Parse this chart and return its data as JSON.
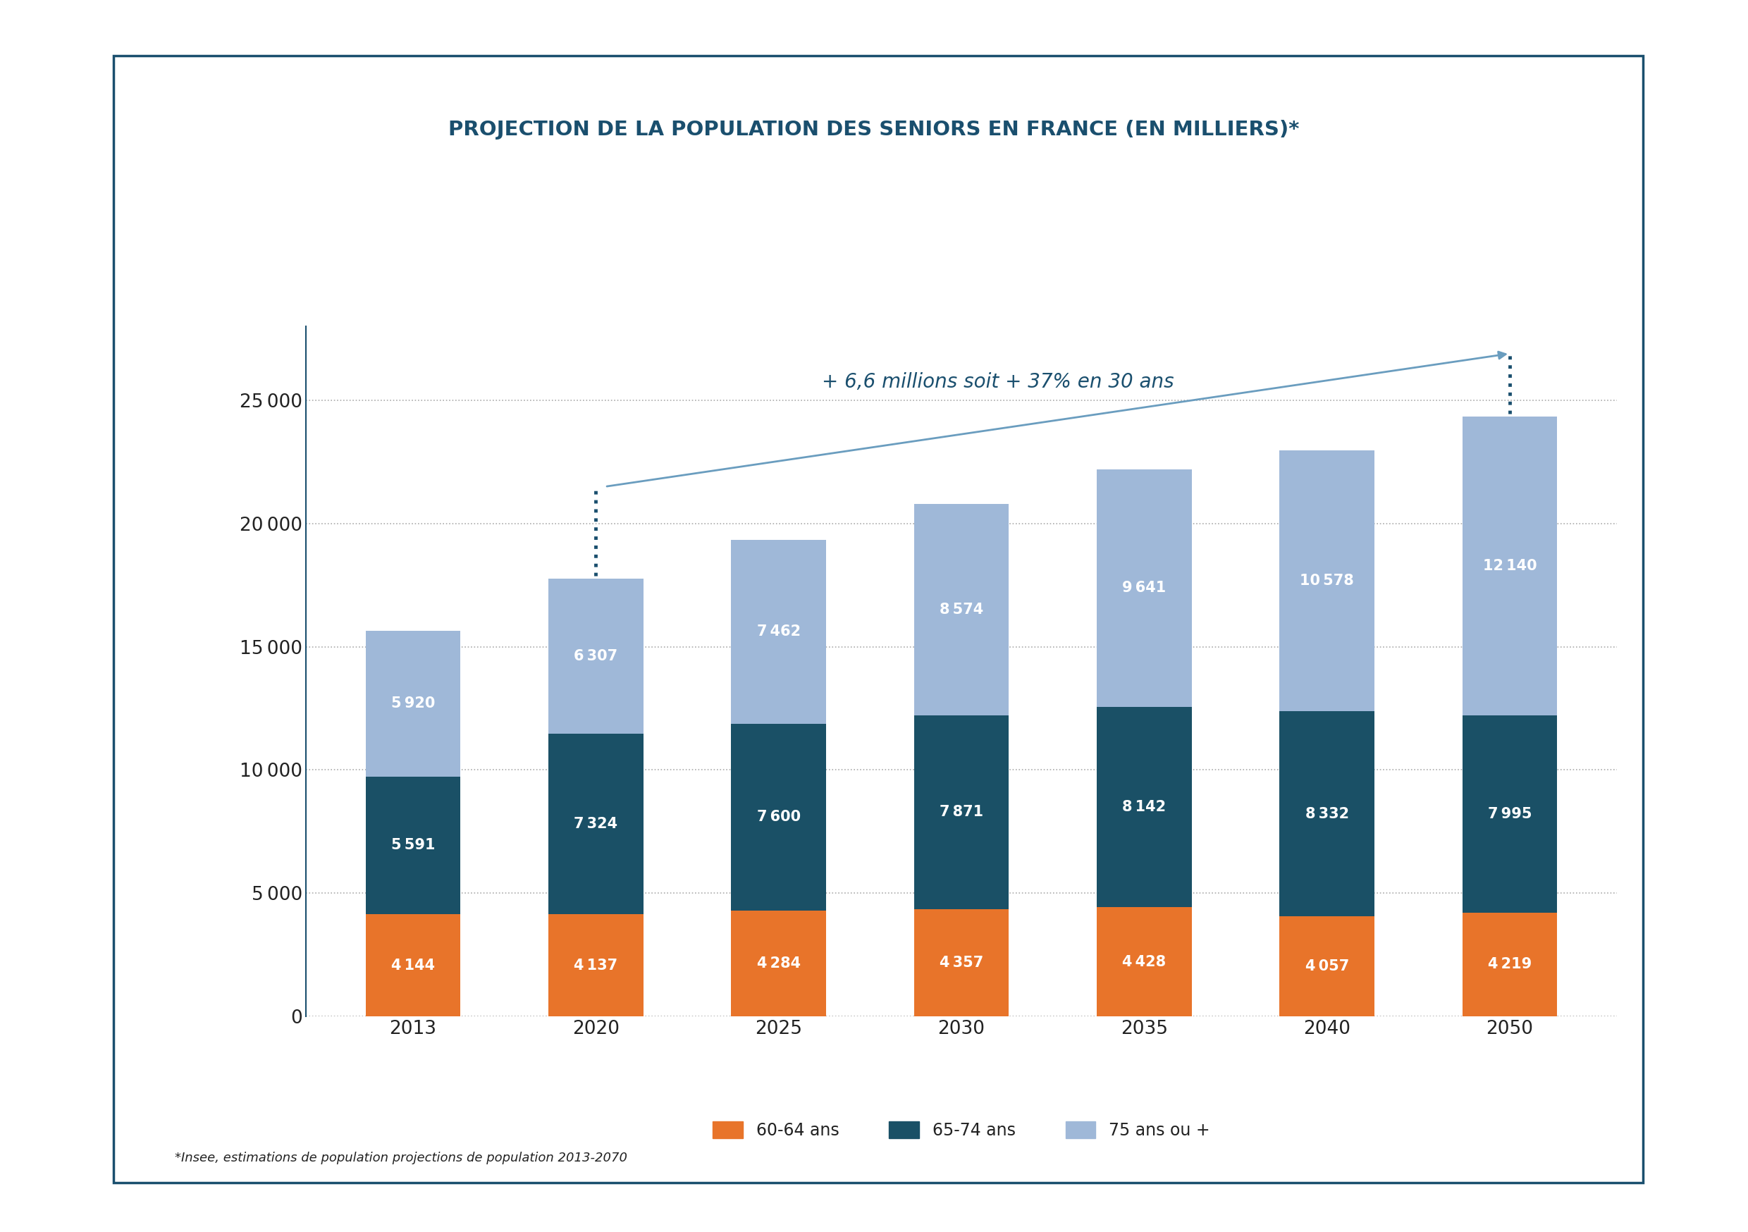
{
  "title": "PROJECTION DE LA POPULATION DES SENIORS EN FRANCE (EN MILLIERS)*",
  "footnote": "*Insee, estimations de population projections de population 2013-2070",
  "annotation": "+ 6,6 millions soit + 37% en 30 ans",
  "years": [
    "2013",
    "2020",
    "2025",
    "2030",
    "2035",
    "2040",
    "2050"
  ],
  "age_60_64": [
    4144,
    4137,
    4284,
    4357,
    4428,
    4057,
    4219
  ],
  "age_65_74": [
    5591,
    7324,
    7600,
    7871,
    8142,
    8332,
    7995
  ],
  "age_75_plus": [
    5920,
    6307,
    7462,
    8574,
    9641,
    10578,
    12140
  ],
  "color_60_64": "#e8742a",
  "color_65_74": "#1a5066",
  "color_75_plus": "#9fb8d8",
  "title_color": "#1a4f6e",
  "axis_label_color": "#222222",
  "grid_color": "#aaaaaa",
  "annotation_color": "#1a4f6e",
  "arrow_color": "#6a9dbf",
  "dotted_line_color": "#1a4f6e",
  "legend_labels": [
    "60-64 ans",
    "65-74 ans",
    "75 ans ou +"
  ],
  "ylim": [
    0,
    28000
  ],
  "yticks": [
    0,
    5000,
    10000,
    15000,
    20000,
    25000
  ],
  "background_color": "#ffffff",
  "border_color": "#1a4f6e",
  "bar_width": 0.52,
  "label_fontsize": 15,
  "tick_fontsize": 19,
  "title_fontsize": 21,
  "annotation_fontsize": 20,
  "legend_fontsize": 17,
  "footnote_fontsize": 13
}
